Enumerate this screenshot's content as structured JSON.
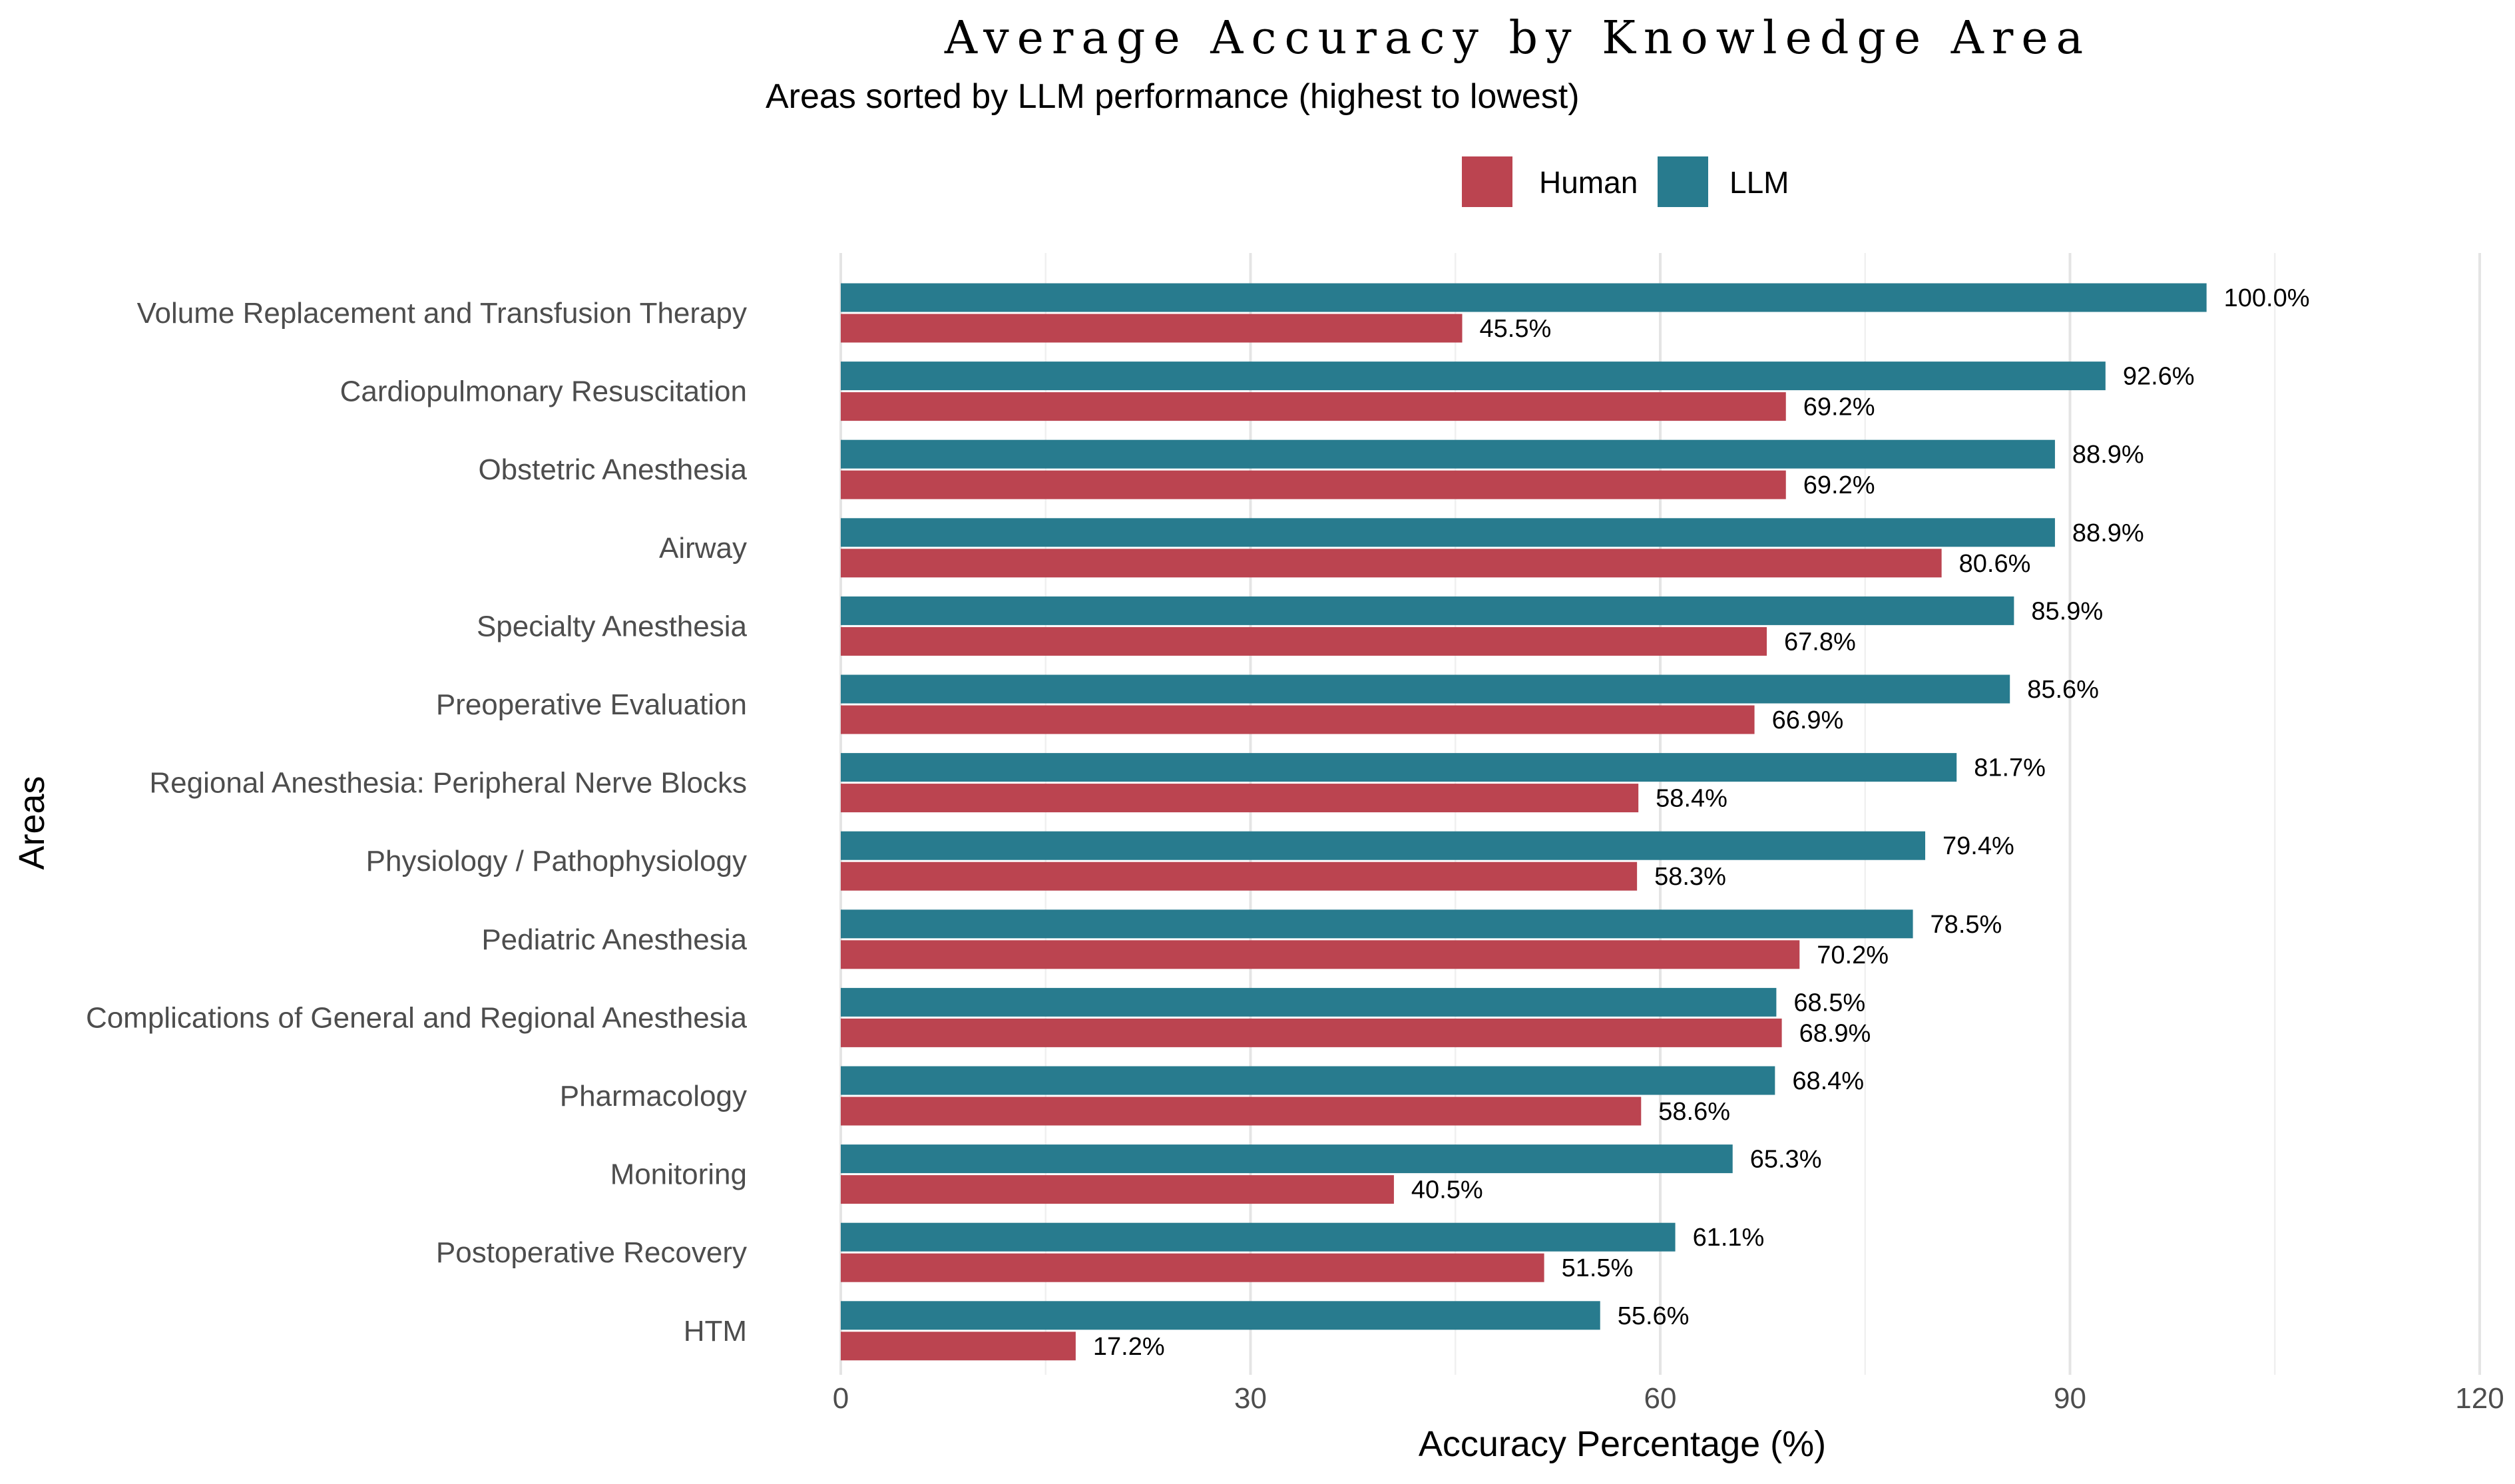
{
  "chart_data": {
    "type": "bar",
    "orientation": "horizontal",
    "title": "Average Accuracy by Knowledge Area",
    "subtitle": "Areas sorted by LLM performance (highest to lowest)",
    "xlabel": "Accuracy Percentage (%)",
    "ylabel": "Areas",
    "xlim": [
      0,
      120
    ],
    "xticks": [
      0,
      30,
      60,
      90,
      120
    ],
    "grid": true,
    "legend_position": "top",
    "categories": [
      "Volume Replacement and Transfusion Therapy",
      "Cardiopulmonary Resuscitation",
      "Obstetric Anesthesia",
      "Airway",
      "Specialty Anesthesia",
      "Preoperative Evaluation",
      "Regional Anesthesia: Peripheral Nerve Blocks",
      "Physiology / Pathophysiology",
      "Pediatric Anesthesia",
      "Complications of General and Regional Anesthesia",
      "Pharmacology",
      "Monitoring",
      "Postoperative Recovery",
      "HTM"
    ],
    "series": [
      {
        "name": "Human",
        "color": "#bb4450",
        "values": [
          45.5,
          69.2,
          69.2,
          80.6,
          67.8,
          66.9,
          58.4,
          58.3,
          70.2,
          68.9,
          58.6,
          40.5,
          51.5,
          17.2
        ],
        "labels": [
          "45.5%",
          "69.2%",
          "69.2%",
          "80.6%",
          "67.8%",
          "66.9%",
          "58.4%",
          "58.3%",
          "70.2%",
          "68.9%",
          "58.6%",
          "40.5%",
          "51.5%",
          "17.2%"
        ]
      },
      {
        "name": "LLM",
        "color": "#287b8e",
        "values": [
          100.0,
          92.6,
          88.9,
          88.9,
          85.9,
          85.6,
          81.7,
          79.4,
          78.5,
          68.5,
          68.4,
          65.3,
          61.1,
          55.6
        ],
        "labels": [
          "100.0%",
          "92.6%",
          "88.9%",
          "88.9%",
          "85.9%",
          "85.6%",
          "81.7%",
          "79.4%",
          "78.5%",
          "68.5%",
          "68.4%",
          "65.3%",
          "61.1%",
          "55.6%"
        ]
      }
    ]
  }
}
